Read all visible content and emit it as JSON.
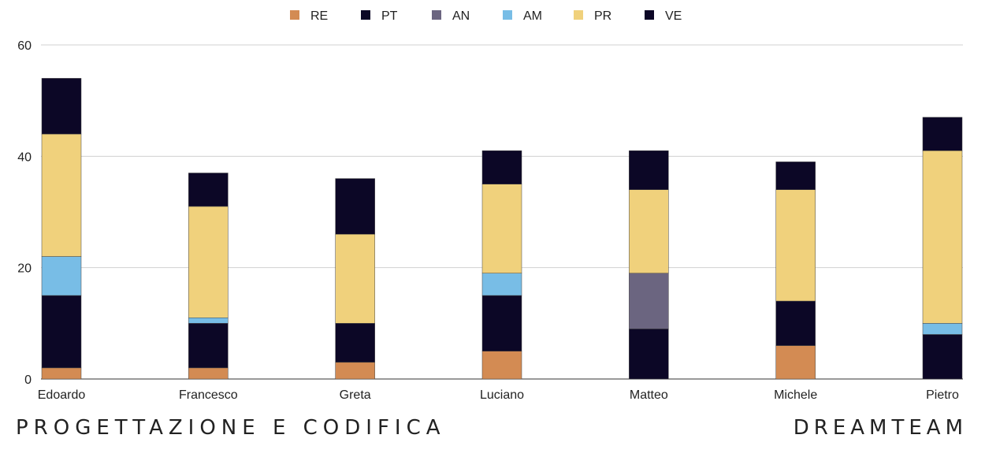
{
  "footer": {
    "left": "PROGETTAZIONE E CODIFICA",
    "right": "DREAMTEAM"
  },
  "chart_data": {
    "type": "bar",
    "stacked": true,
    "categories": [
      "Edoardo",
      "Francesco",
      "Greta",
      "Luciano",
      "Matteo",
      "Michele",
      "Pietro"
    ],
    "series": [
      {
        "name": "RE",
        "color": "#d38b53",
        "values": [
          2,
          2,
          3,
          5,
          0,
          6,
          0
        ]
      },
      {
        "name": "PT",
        "color": "#0c0726",
        "values": [
          13,
          8,
          7,
          10,
          9,
          8,
          8
        ]
      },
      {
        "name": "AN",
        "color": "#6b6580",
        "values": [
          0,
          0,
          0,
          0,
          10,
          0,
          0
        ]
      },
      {
        "name": "AM",
        "color": "#78bde6",
        "values": [
          7,
          1,
          0,
          4,
          0,
          0,
          2
        ]
      },
      {
        "name": "PR",
        "color": "#f0d17c",
        "values": [
          22,
          20,
          16,
          16,
          15,
          20,
          31
        ]
      },
      {
        "name": "VE",
        "color": "#0c0726",
        "values": [
          10,
          6,
          10,
          6,
          7,
          5,
          6
        ]
      }
    ],
    "ylim": [
      0,
      60
    ],
    "yticks": [
      0,
      20,
      40,
      60
    ],
    "grid": true,
    "legend_position": "top-center",
    "xlabel": "",
    "ylabel": ""
  }
}
